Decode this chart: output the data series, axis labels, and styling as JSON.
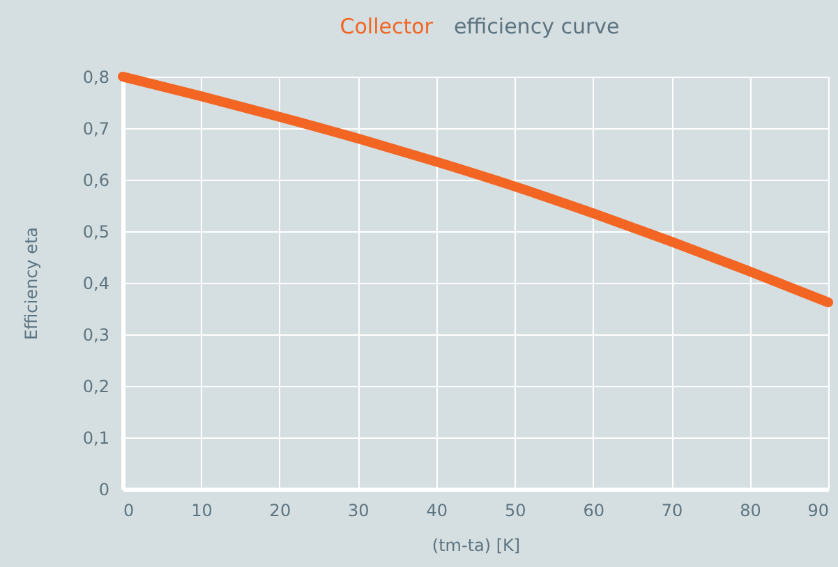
{
  "chart_data": {
    "type": "line",
    "title": "Collector efficiency curve",
    "xlabel": "(tm-ta) [K]",
    "ylabel": "Efficiency eta",
    "x": [
      0,
      10,
      20,
      30,
      40,
      50,
      60,
      70,
      80,
      90
    ],
    "series": [
      {
        "color": "#f26522",
        "values": [
          0.8,
          0.762,
          0.722,
          0.68,
          0.635,
          0.587,
          0.535,
          0.48,
          0.422,
          0.362
        ]
      }
    ],
    "xlim": [
      0,
      90
    ],
    "xticks": [
      0,
      10,
      20,
      30,
      40,
      50,
      60,
      70,
      80,
      90
    ],
    "ylim": [
      0,
      0.8
    ],
    "yticks": [
      {
        "value": 0,
        "label": "0"
      },
      {
        "value": 0.1,
        "label": "0,1"
      },
      {
        "value": 0.2,
        "label": "0,2"
      },
      {
        "value": 0.3,
        "label": "0,3"
      },
      {
        "value": 0.4,
        "label": "0,4"
      },
      {
        "value": 0.5,
        "label": "0,5"
      },
      {
        "value": 0.6,
        "label": "0,6"
      },
      {
        "value": 0.7,
        "label": "0,7"
      },
      {
        "value": 0.8,
        "label": "0,8"
      }
    ],
    "grid": true,
    "legend": false,
    "line_style": "solid"
  }
}
